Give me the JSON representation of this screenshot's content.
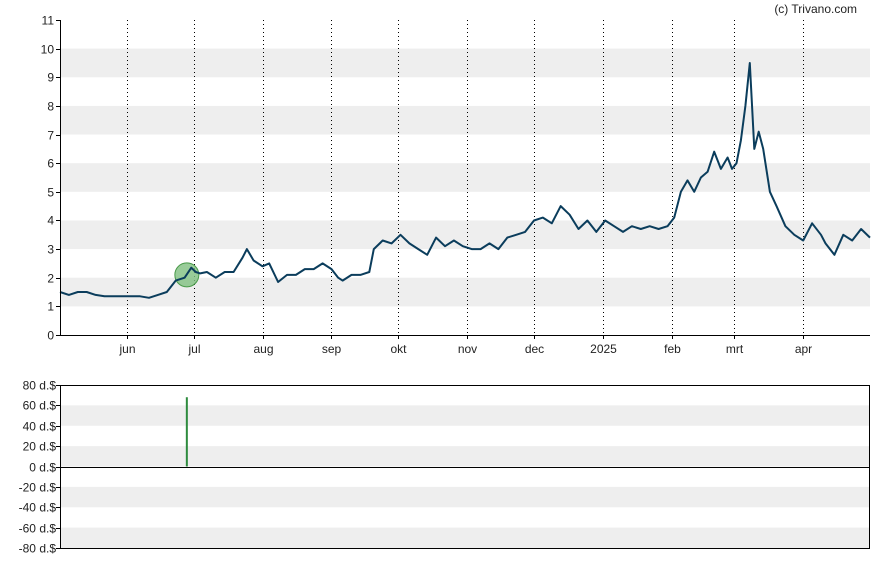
{
  "credit": "(c) Trivano.com",
  "colors": {
    "price_line": "#0b3d5c",
    "band": "#eeeeee",
    "marker_fill": "#7fbf7f",
    "marker_stroke": "#4a9a4a",
    "volume_bar": "#2e8b3e",
    "axis": "#000000",
    "grid": "#000000"
  },
  "chart_data": [
    {
      "type": "line",
      "title": "",
      "ylim": [
        0,
        11
      ],
      "y_ticks": [
        "0",
        "1",
        "2",
        "3",
        "4",
        "5",
        "6",
        "7",
        "8",
        "9",
        "10",
        "11"
      ],
      "x_ticks": [
        "jun",
        "jul",
        "aug",
        "sep",
        "okt",
        "nov",
        "dec",
        "2025",
        "feb",
        "mrt",
        "apr"
      ],
      "x_tick_dates": [
        "2024-06-01",
        "2024-07-01",
        "2024-08-01",
        "2024-09-01",
        "2024-10-01",
        "2024-11-01",
        "2024-12-01",
        "2025-01-01",
        "2025-02-01",
        "2025-03-01",
        "2025-04-01"
      ],
      "x_range": [
        "2024-05-02",
        "2025-05-01"
      ],
      "grid": true,
      "marker": {
        "date": "2024-06-28",
        "value": 2.1
      },
      "series": [
        {
          "x": [
            "2024-05-02",
            "2024-05-06",
            "2024-05-10",
            "2024-05-14",
            "2024-05-18",
            "2024-05-22",
            "2024-05-26",
            "2024-05-30",
            "2024-06-03",
            "2024-06-07",
            "2024-06-11",
            "2024-06-15",
            "2024-06-19",
            "2024-06-23",
            "2024-06-27",
            "2024-06-30",
            "2024-07-02",
            "2024-07-04",
            "2024-07-07",
            "2024-07-11",
            "2024-07-15",
            "2024-07-19",
            "2024-07-23",
            "2024-07-25",
            "2024-07-28",
            "2024-08-01",
            "2024-08-04",
            "2024-08-08",
            "2024-08-12",
            "2024-08-16",
            "2024-08-20",
            "2024-08-24",
            "2024-08-28",
            "2024-09-01",
            "2024-09-04",
            "2024-09-06",
            "2024-09-10",
            "2024-09-14",
            "2024-09-18",
            "2024-09-20",
            "2024-09-24",
            "2024-09-28",
            "2024-10-02",
            "2024-10-06",
            "2024-10-10",
            "2024-10-14",
            "2024-10-18",
            "2024-10-22",
            "2024-10-26",
            "2024-10-30",
            "2024-11-03",
            "2024-11-07",
            "2024-11-11",
            "2024-11-15",
            "2024-11-19",
            "2024-11-23",
            "2024-11-27",
            "2024-12-01",
            "2024-12-05",
            "2024-12-09",
            "2024-12-13",
            "2024-12-17",
            "2024-12-21",
            "2024-12-25",
            "2024-12-29",
            "2025-01-02",
            "2025-01-06",
            "2025-01-10",
            "2025-01-14",
            "2025-01-18",
            "2025-01-22",
            "2025-01-26",
            "2025-01-30",
            "2025-02-02",
            "2025-02-05",
            "2025-02-08",
            "2025-02-11",
            "2025-02-14",
            "2025-02-17",
            "2025-02-20",
            "2025-02-23",
            "2025-02-26",
            "2025-02-28",
            "2025-03-02",
            "2025-03-04",
            "2025-03-06",
            "2025-03-08",
            "2025-03-10",
            "2025-03-12",
            "2025-03-14",
            "2025-03-17",
            "2025-03-20",
            "2025-03-24",
            "2025-03-28",
            "2025-04-01",
            "2025-04-05",
            "2025-04-09",
            "2025-04-11",
            "2025-04-15",
            "2025-04-19",
            "2025-04-23",
            "2025-04-27",
            "2025-05-01"
          ],
          "values": [
            1.5,
            1.4,
            1.5,
            1.5,
            1.4,
            1.35,
            1.35,
            1.35,
            1.35,
            1.35,
            1.3,
            1.4,
            1.5,
            1.9,
            2.0,
            2.35,
            2.2,
            2.15,
            2.2,
            2.0,
            2.2,
            2.2,
            2.7,
            3.0,
            2.6,
            2.4,
            2.5,
            1.85,
            2.1,
            2.1,
            2.3,
            2.3,
            2.5,
            2.3,
            2.0,
            1.9,
            2.1,
            2.1,
            2.2,
            3.0,
            3.3,
            3.2,
            3.5,
            3.2,
            3.0,
            2.8,
            3.4,
            3.1,
            3.3,
            3.1,
            3.0,
            3.0,
            3.2,
            3.0,
            3.4,
            3.5,
            3.6,
            4.0,
            4.1,
            3.9,
            4.5,
            4.2,
            3.7,
            4.0,
            3.6,
            4.0,
            3.8,
            3.6,
            3.8,
            3.7,
            3.8,
            3.7,
            3.8,
            4.1,
            5.0,
            5.4,
            5.0,
            5.5,
            5.7,
            6.4,
            5.8,
            6.2,
            5.8,
            6.0,
            6.8,
            8.0,
            9.5,
            6.5,
            7.1,
            6.5,
            5.0,
            4.5,
            3.8,
            3.5,
            3.3,
            3.9,
            3.5,
            3.2,
            2.8,
            3.5,
            3.3,
            3.7,
            3.4
          ]
        }
      ]
    },
    {
      "type": "bar",
      "title": "",
      "ylim": [
        -80,
        80
      ],
      "y_ticks": [
        "80 d.$",
        "60 d.$",
        "40 d.$",
        "20 d.$",
        "0 d.$",
        "-20 d.$",
        "-40 d.$",
        "-60 d.$",
        "-80 d.$"
      ],
      "grid": true,
      "series": [
        {
          "x": [
            "2024-06-28"
          ],
          "values": [
            68
          ]
        }
      ]
    }
  ]
}
